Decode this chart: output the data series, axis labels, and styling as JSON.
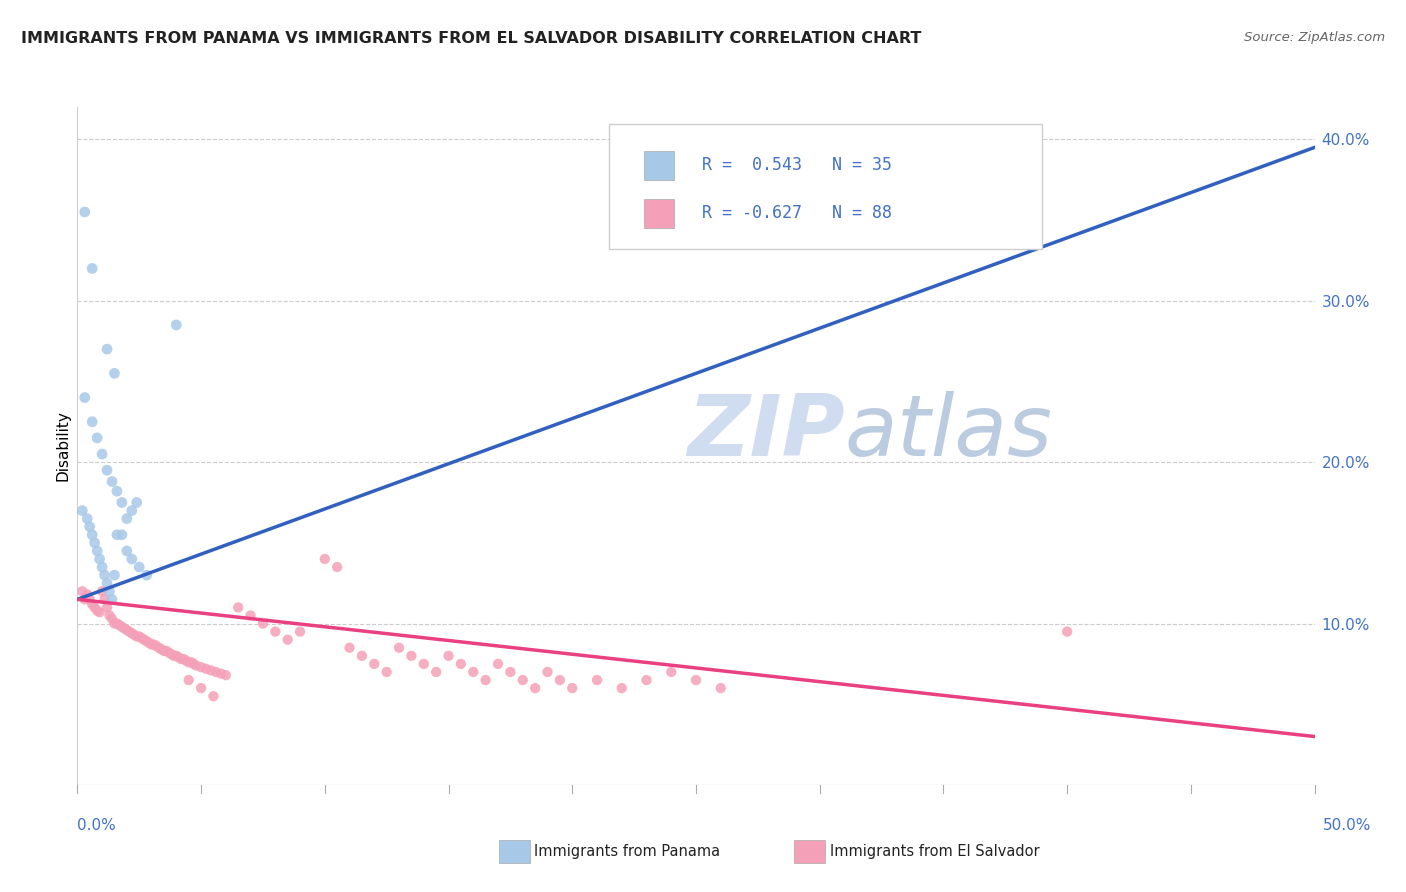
{
  "title": "IMMIGRANTS FROM PANAMA VS IMMIGRANTS FROM EL SALVADOR DISABILITY CORRELATION CHART",
  "source": "Source: ZipAtlas.com",
  "ylabel": "Disability",
  "xlim": [
    0.0,
    0.5
  ],
  "ylim": [
    0.0,
    0.42
  ],
  "yticks": [
    0.1,
    0.2,
    0.3,
    0.4
  ],
  "panama_color": "#A8C8E8",
  "salvador_color": "#F4A0B8",
  "panama_line_color": "#3060C0",
  "salvador_line_color": "#E84080",
  "grid_color": "#CCCCCC",
  "background_color": "#FFFFFF",
  "panama_scatter": [
    [
      0.003,
      0.355
    ],
    [
      0.006,
      0.32
    ],
    [
      0.012,
      0.27
    ],
    [
      0.015,
      0.255
    ],
    [
      0.003,
      0.24
    ],
    [
      0.006,
      0.225
    ],
    [
      0.008,
      0.215
    ],
    [
      0.01,
      0.205
    ],
    [
      0.012,
      0.195
    ],
    [
      0.014,
      0.188
    ],
    [
      0.016,
      0.182
    ],
    [
      0.018,
      0.175
    ],
    [
      0.002,
      0.17
    ],
    [
      0.004,
      0.165
    ],
    [
      0.005,
      0.16
    ],
    [
      0.006,
      0.155
    ],
    [
      0.007,
      0.15
    ],
    [
      0.008,
      0.145
    ],
    [
      0.009,
      0.14
    ],
    [
      0.01,
      0.135
    ],
    [
      0.011,
      0.13
    ],
    [
      0.012,
      0.125
    ],
    [
      0.013,
      0.12
    ],
    [
      0.014,
      0.115
    ],
    [
      0.015,
      0.13
    ],
    [
      0.018,
      0.155
    ],
    [
      0.02,
      0.165
    ],
    [
      0.022,
      0.17
    ],
    [
      0.024,
      0.175
    ],
    [
      0.016,
      0.155
    ],
    [
      0.02,
      0.145
    ],
    [
      0.022,
      0.14
    ],
    [
      0.025,
      0.135
    ],
    [
      0.028,
      0.13
    ],
    [
      0.04,
      0.285
    ]
  ],
  "salvador_scatter": [
    [
      0.002,
      0.12
    ],
    [
      0.003,
      0.115
    ],
    [
      0.004,
      0.118
    ],
    [
      0.005,
      0.115
    ],
    [
      0.006,
      0.112
    ],
    [
      0.007,
      0.11
    ],
    [
      0.008,
      0.108
    ],
    [
      0.009,
      0.107
    ],
    [
      0.01,
      0.12
    ],
    [
      0.011,
      0.115
    ],
    [
      0.012,
      0.11
    ],
    [
      0.013,
      0.105
    ],
    [
      0.014,
      0.103
    ],
    [
      0.015,
      0.1
    ],
    [
      0.016,
      0.1
    ],
    [
      0.017,
      0.099
    ],
    [
      0.018,
      0.098
    ],
    [
      0.019,
      0.097
    ],
    [
      0.02,
      0.096
    ],
    [
      0.021,
      0.095
    ],
    [
      0.022,
      0.094
    ],
    [
      0.023,
      0.093
    ],
    [
      0.024,
      0.092
    ],
    [
      0.025,
      0.092
    ],
    [
      0.026,
      0.091
    ],
    [
      0.027,
      0.09
    ],
    [
      0.028,
      0.089
    ],
    [
      0.029,
      0.088
    ],
    [
      0.03,
      0.087
    ],
    [
      0.031,
      0.087
    ],
    [
      0.032,
      0.086
    ],
    [
      0.033,
      0.085
    ],
    [
      0.034,
      0.084
    ],
    [
      0.035,
      0.083
    ],
    [
      0.036,
      0.083
    ],
    [
      0.037,
      0.082
    ],
    [
      0.038,
      0.081
    ],
    [
      0.039,
      0.08
    ],
    [
      0.04,
      0.08
    ],
    [
      0.041,
      0.079
    ],
    [
      0.042,
      0.078
    ],
    [
      0.043,
      0.078
    ],
    [
      0.044,
      0.077
    ],
    [
      0.045,
      0.076
    ],
    [
      0.046,
      0.076
    ],
    [
      0.047,
      0.075
    ],
    [
      0.048,
      0.074
    ],
    [
      0.05,
      0.073
    ],
    [
      0.052,
      0.072
    ],
    [
      0.054,
      0.071
    ],
    [
      0.056,
      0.07
    ],
    [
      0.058,
      0.069
    ],
    [
      0.06,
      0.068
    ],
    [
      0.065,
      0.11
    ],
    [
      0.07,
      0.105
    ],
    [
      0.075,
      0.1
    ],
    [
      0.08,
      0.095
    ],
    [
      0.085,
      0.09
    ],
    [
      0.09,
      0.095
    ],
    [
      0.1,
      0.14
    ],
    [
      0.105,
      0.135
    ],
    [
      0.11,
      0.085
    ],
    [
      0.115,
      0.08
    ],
    [
      0.12,
      0.075
    ],
    [
      0.125,
      0.07
    ],
    [
      0.13,
      0.085
    ],
    [
      0.135,
      0.08
    ],
    [
      0.14,
      0.075
    ],
    [
      0.145,
      0.07
    ],
    [
      0.15,
      0.08
    ],
    [
      0.155,
      0.075
    ],
    [
      0.16,
      0.07
    ],
    [
      0.165,
      0.065
    ],
    [
      0.17,
      0.075
    ],
    [
      0.175,
      0.07
    ],
    [
      0.18,
      0.065
    ],
    [
      0.185,
      0.06
    ],
    [
      0.19,
      0.07
    ],
    [
      0.195,
      0.065
    ],
    [
      0.2,
      0.06
    ],
    [
      0.21,
      0.065
    ],
    [
      0.22,
      0.06
    ],
    [
      0.23,
      0.065
    ],
    [
      0.24,
      0.07
    ],
    [
      0.25,
      0.065
    ],
    [
      0.26,
      0.06
    ],
    [
      0.4,
      0.095
    ],
    [
      0.045,
      0.065
    ],
    [
      0.05,
      0.06
    ],
    [
      0.055,
      0.055
    ]
  ],
  "panama_trend_x": [
    0.0,
    0.5
  ],
  "panama_trend_y": [
    0.115,
    0.395
  ],
  "salvador_trend_x": [
    0.0,
    0.5
  ],
  "salvador_trend_y": [
    0.115,
    0.03
  ]
}
